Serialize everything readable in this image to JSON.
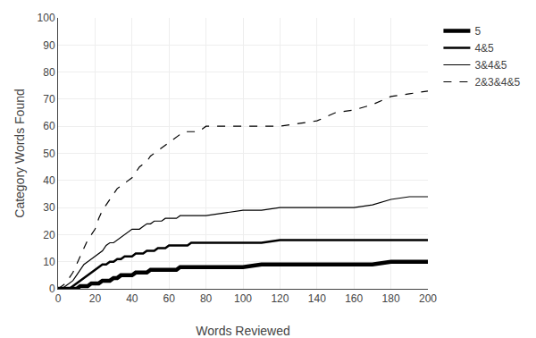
{
  "chart_data": {
    "type": "line",
    "xlabel": "Words Reviewed",
    "ylabel": "Category Words Found",
    "x": [
      0,
      2,
      4,
      6,
      8,
      10,
      12,
      14,
      16,
      18,
      20,
      22,
      24,
      26,
      28,
      30,
      32,
      34,
      36,
      38,
      40,
      42,
      44,
      46,
      48,
      50,
      52,
      54,
      56,
      58,
      60,
      62,
      64,
      66,
      68,
      70,
      72,
      74,
      76,
      78,
      80,
      90,
      100,
      110,
      120,
      130,
      140,
      150,
      160,
      170,
      180,
      190,
      200
    ],
    "series": [
      {
        "name": "5",
        "color": "#000000",
        "line_style": "solid",
        "values": [
          0,
          0,
          0,
          0,
          0,
          0,
          1,
          1,
          1,
          2,
          2,
          2,
          3,
          3,
          3,
          4,
          4,
          5,
          5,
          5,
          5,
          6,
          6,
          6,
          6,
          7,
          7,
          7,
          7,
          7,
          7,
          7,
          7,
          8,
          8,
          8,
          8,
          8,
          8,
          8,
          8,
          8,
          8,
          9,
          9,
          9,
          9,
          9,
          9,
          9,
          10,
          10,
          10
        ]
      },
      {
        "name": "4&5",
        "color": "#000000",
        "line_style": "solid",
        "values": [
          0,
          0,
          0,
          0,
          1,
          2,
          3,
          4,
          5,
          6,
          7,
          8,
          9,
          9,
          10,
          10,
          11,
          11,
          12,
          12,
          12,
          13,
          13,
          13,
          14,
          14,
          14,
          15,
          15,
          15,
          16,
          16,
          16,
          16,
          16,
          16,
          17,
          17,
          17,
          17,
          17,
          17,
          17,
          17,
          18,
          18,
          18,
          18,
          18,
          18,
          18,
          18,
          18
        ]
      },
      {
        "name": "3&4&5",
        "color": "#000000",
        "line_style": "solid",
        "values": [
          0,
          0,
          1,
          2,
          3,
          5,
          7,
          9,
          10,
          11,
          12,
          13,
          14,
          16,
          17,
          17,
          18,
          19,
          20,
          21,
          22,
          22,
          22,
          23,
          24,
          24,
          25,
          25,
          25,
          26,
          26,
          26,
          26,
          27,
          27,
          27,
          27,
          27,
          27,
          27,
          27,
          28,
          29,
          29,
          30,
          30,
          30,
          30,
          30,
          31,
          33,
          34,
          34
        ]
      },
      {
        "name": "2&3&4&5",
        "color": "#000000",
        "line_style": "dashed",
        "values": [
          0,
          1,
          2,
          4,
          6,
          9,
          12,
          15,
          18,
          20,
          22,
          26,
          29,
          31,
          33,
          35,
          37,
          38,
          39,
          40,
          41,
          43,
          45,
          46,
          47,
          49,
          50,
          51,
          52,
          53,
          54,
          55,
          56,
          57,
          58,
          58,
          58,
          58,
          58,
          59,
          60,
          60,
          60,
          60,
          60,
          61,
          62,
          65,
          66,
          68,
          71,
          72,
          73
        ]
      }
    ],
    "xlim": [
      0,
      200
    ],
    "ylim": [
      0,
      100
    ],
    "xticks": [
      0,
      20,
      40,
      60,
      80,
      100,
      120,
      140,
      160,
      180,
      200
    ],
    "yticks": [
      0,
      10,
      20,
      30,
      40,
      50,
      60,
      70,
      80,
      90,
      100
    ],
    "grid": true,
    "legend": "right"
  }
}
